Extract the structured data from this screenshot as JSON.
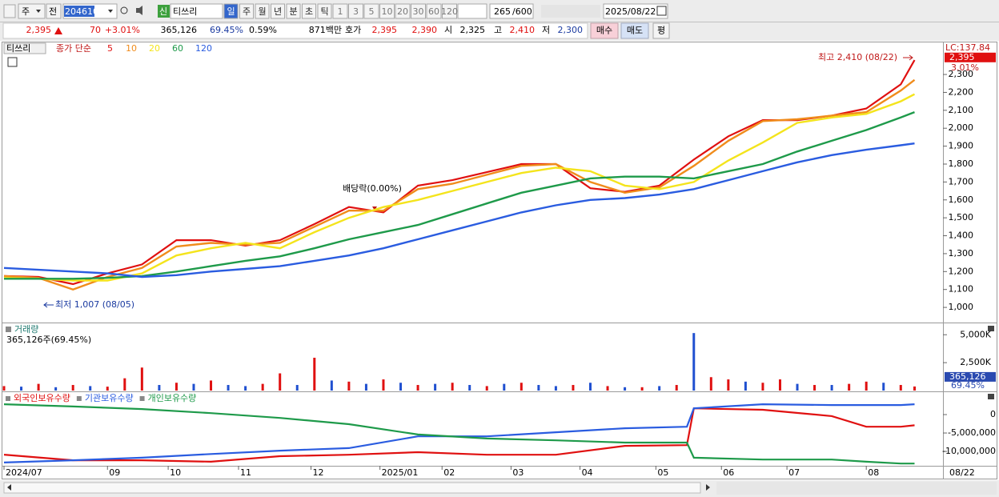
{
  "toolbar": {
    "market": "주",
    "prev": "전",
    "code": "204610",
    "name": "티쓰리",
    "periods": [
      "일",
      "주",
      "월",
      "년",
      "분",
      "초",
      "틱"
    ],
    "intervals": [
      "1",
      "3",
      "5",
      "10",
      "20",
      "30",
      "60",
      "120"
    ],
    "count": "265",
    "total": "/600",
    "date": "2025/08/22"
  },
  "quote": {
    "price": "2,395",
    "change": "70",
    "change_pct": "+3.01%",
    "volume": "365,126",
    "volume_ratio": "69.45%",
    "turnover": "0.59%",
    "amount": "871백만",
    "ask_label": "호가",
    "ask": "2,395",
    "bid": "2,390",
    "open_label": "시",
    "open": "2,325",
    "high_label": "고",
    "high": "2,410",
    "low_label": "저",
    "low": "2,300",
    "buy": "매수",
    "sell": "매도",
    "avg": "평"
  },
  "chart_data": [
    {
      "type": "line",
      "legend_name": "티쓰리",
      "legend_title": "종가 단순",
      "x": [
        0,
        10,
        20,
        30,
        40,
        50,
        60,
        70,
        80,
        90,
        100,
        110,
        120,
        130,
        140,
        150,
        160,
        170,
        180,
        190,
        200,
        210,
        220,
        230,
        240,
        250,
        260,
        264
      ],
      "xlim": [
        0,
        272
      ],
      "xticks": [
        {
          "value": 0,
          "label": "2024/07"
        },
        {
          "value": 30,
          "label": "09"
        },
        {
          "value": 47.6,
          "label": "10"
        },
        {
          "value": 68,
          "label": "11"
        },
        {
          "value": 89,
          "label": "12"
        },
        {
          "value": 109,
          "label": "2025/01"
        },
        {
          "value": 127,
          "label": "02"
        },
        {
          "value": 147,
          "label": "03"
        },
        {
          "value": 167,
          "label": "04"
        },
        {
          "value": 189,
          "label": "05"
        },
        {
          "value": 208,
          "label": "06"
        },
        {
          "value": 227,
          "label": "07"
        },
        {
          "value": 250,
          "label": "08"
        }
      ],
      "last_date": "08/22",
      "ylim": [
        920,
        2470
      ],
      "yticks": [
        {
          "value": 1000,
          "label": "1,000"
        },
        {
          "value": 1100,
          "label": "1,100"
        },
        {
          "value": 1200,
          "label": "1,200"
        },
        {
          "value": 1300,
          "label": "1,300"
        },
        {
          "value": 1400,
          "label": "1,400"
        },
        {
          "value": 1500,
          "label": "1,500"
        },
        {
          "value": 1600,
          "label": "1,600"
        },
        {
          "value": 1700,
          "label": "1,700"
        },
        {
          "value": 1800,
          "label": "1,800"
        },
        {
          "value": 1900,
          "label": "1,900"
        },
        {
          "value": 2000,
          "label": "2,000"
        },
        {
          "value": 2100,
          "label": "2,100"
        },
        {
          "value": 2200,
          "label": "2,200"
        },
        {
          "value": 2300,
          "label": "2,300"
        }
      ],
      "series": [
        {
          "name": "5",
          "color": "#e01010",
          "values": [
            1175,
            1170,
            1130,
            1190,
            1240,
            1375,
            1375,
            1345,
            1375,
            1465,
            1560,
            1530,
            1680,
            1710,
            1755,
            1800,
            1800,
            1665,
            1645,
            1680,
            1825,
            1955,
            2045,
            2045,
            2070,
            2110,
            2245,
            2380
          ]
        },
        {
          "name": "10",
          "color": "#f08c1c",
          "values": [
            1175,
            1165,
            1100,
            1170,
            1220,
            1340,
            1360,
            1350,
            1360,
            1450,
            1540,
            1540,
            1660,
            1690,
            1740,
            1790,
            1800,
            1700,
            1640,
            1670,
            1790,
            1930,
            2040,
            2050,
            2070,
            2090,
            2210,
            2270
          ]
        },
        {
          "name": "20",
          "color": "#f4e41c",
          "values": [
            1165,
            1160,
            1150,
            1150,
            1190,
            1290,
            1330,
            1360,
            1330,
            1420,
            1500,
            1560,
            1600,
            1650,
            1700,
            1750,
            1780,
            1760,
            1680,
            1660,
            1700,
            1820,
            1920,
            2030,
            2060,
            2080,
            2150,
            2190
          ]
        },
        {
          "name": "60",
          "color": "#1e9a4a",
          "values": [
            1160,
            1160,
            1160,
            1165,
            1175,
            1200,
            1230,
            1260,
            1285,
            1330,
            1380,
            1420,
            1460,
            1520,
            1580,
            1640,
            1680,
            1720,
            1730,
            1730,
            1720,
            1760,
            1800,
            1870,
            1930,
            1990,
            2060,
            2090
          ]
        },
        {
          "name": "120",
          "color": "#2a5ce0",
          "values": [
            1220,
            1210,
            1200,
            1190,
            1170,
            1180,
            1200,
            1215,
            1230,
            1260,
            1290,
            1330,
            1380,
            1430,
            1480,
            1530,
            1570,
            1600,
            1610,
            1630,
            1660,
            1710,
            1760,
            1810,
            1850,
            1880,
            1905,
            1915
          ]
        }
      ],
      "scale_label": "LC:137.84",
      "current": {
        "value": 2395,
        "label": "2,395"
      },
      "current_pct": "3.01%",
      "annotations": [
        "최고 2,410 (08/22)",
        "최저 1,007 (08/05)",
        "배당락(0.00%)"
      ]
    },
    {
      "type": "bar",
      "title": "거래량",
      "subtitle": "365,126주(69.45%)",
      "x": [
        0,
        5,
        10,
        15,
        20,
        25,
        30,
        35,
        40,
        45,
        50,
        55,
        60,
        65,
        70,
        75,
        80,
        85,
        90,
        95,
        100,
        105,
        110,
        115,
        120,
        125,
        130,
        135,
        140,
        145,
        150,
        155,
        160,
        165,
        170,
        175,
        180,
        185,
        190,
        195,
        200,
        205,
        210,
        215,
        220,
        225,
        230,
        235,
        240,
        245,
        250,
        255,
        260,
        264
      ],
      "values": [
        400000,
        350000,
        600000,
        300000,
        500000,
        400000,
        350000,
        1100000,
        2060000,
        500000,
        700000,
        600000,
        900000,
        500000,
        400000,
        600000,
        1540000,
        500000,
        2940000,
        900000,
        800000,
        600000,
        1000000,
        700000,
        500000,
        600000,
        700000,
        500000,
        400000,
        600000,
        700000,
        500000,
        400000,
        500000,
        700000,
        400000,
        300000,
        300000,
        400000,
        500000,
        5150000,
        1200000,
        1000000,
        800000,
        700000,
        1000000,
        600000,
        500000,
        500000,
        600000,
        800000,
        700000,
        500000,
        365126
      ],
      "colors": [
        "#e01010",
        "#2050d0",
        "#e01010",
        "#2050d0",
        "#e01010",
        "#2050d0",
        "#e01010",
        "#e01010",
        "#e01010",
        "#2050d0",
        "#e01010",
        "#2050d0",
        "#e01010",
        "#2050d0",
        "#2050d0",
        "#e01010",
        "#e01010",
        "#2050d0",
        "#e01010",
        "#2050d0",
        "#e01010",
        "#2050d0",
        "#e01010",
        "#2050d0",
        "#e01010",
        "#2050d0",
        "#e01010",
        "#2050d0",
        "#e01010",
        "#2050d0",
        "#e01010",
        "#2050d0",
        "#2050d0",
        "#e01010",
        "#2050d0",
        "#e01010",
        "#2050d0",
        "#e01010",
        "#2050d0",
        "#e01010",
        "#2050d0",
        "#e01010",
        "#e01010",
        "#2050d0",
        "#e01010",
        "#e01010",
        "#2050d0",
        "#e01010",
        "#2050d0",
        "#e01010",
        "#e01010",
        "#2050d0",
        "#e01010",
        "#e01010"
      ],
      "ylim": [
        0,
        5950000
      ],
      "yticks": [
        {
          "value": 2500000,
          "label": "2,500K"
        },
        {
          "value": 5000000,
          "label": "5,000K"
        }
      ],
      "current": {
        "value": 365126,
        "label": "365,126"
      },
      "current_pct": "69.45%"
    },
    {
      "type": "line",
      "x": [
        0,
        20,
        40,
        60,
        80,
        100,
        120,
        140,
        160,
        180,
        198,
        200,
        220,
        240,
        250,
        260,
        264
      ],
      "series": [
        {
          "name": "외국인보유수량",
          "color": "#e01010",
          "values": [
            -10870000,
            -12400000,
            -12400000,
            -12800000,
            -11300000,
            -10900000,
            -10200000,
            -10900000,
            -10900000,
            -8500000,
            -8300000,
            1700000,
            1300000,
            -400000,
            -3300000,
            -3300000,
            -2900000
          ]
        },
        {
          "name": "기관보유수량",
          "color": "#2a5ce0",
          "values": [
            -13000000,
            -12400000,
            -11700000,
            -10700000,
            -9800000,
            -9100000,
            -5900000,
            -5900000,
            -4800000,
            -3700000,
            -3300000,
            1700000,
            2800000,
            2600000,
            2600000,
            2600000,
            2800000
          ]
        },
        {
          "name": "개인보유수량",
          "color": "#1e9a4a",
          "values": [
            2800000,
            2200000,
            1500000,
            400000,
            -900000,
            -2600000,
            -5400000,
            -6500000,
            -7000000,
            -7600000,
            -7600000,
            -11700000,
            -12200000,
            -12200000,
            -12800000,
            -13300000,
            -13300000
          ]
        }
      ],
      "ylim": [
        -13900000,
        5870000
      ],
      "yticks": [
        0,
        {
          "value": -5000000,
          "label": "-5,000,000"
        },
        {
          "value": -10000000,
          "label": "-10,000,000"
        }
      ]
    }
  ]
}
